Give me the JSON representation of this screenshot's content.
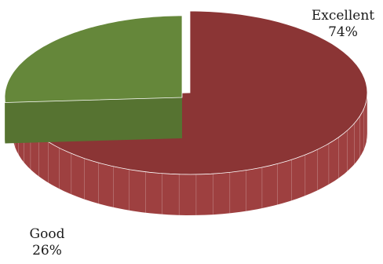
{
  "chart_data": {
    "type": "pie",
    "title": "",
    "slices": [
      {
        "label": "Excellent",
        "percent_label": "74%",
        "value": 74,
        "color": "#8B3535",
        "side_color": "#9E4040",
        "exploded": false
      },
      {
        "label": "Good",
        "percent_label": "26%",
        "value": 26,
        "color": "#65873A",
        "side_color": "#6F9440",
        "exploded": true
      }
    ],
    "three_d": true,
    "legend": "none"
  }
}
